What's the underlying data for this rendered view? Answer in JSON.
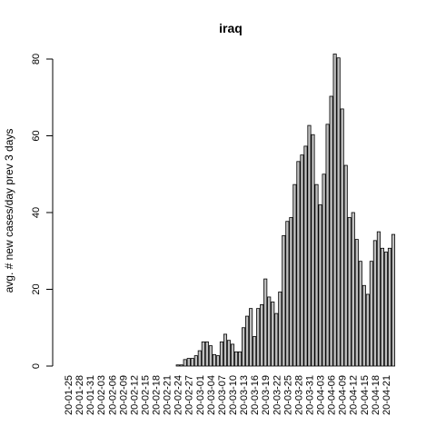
{
  "chart_data": {
    "type": "bar",
    "title": "iraq",
    "xlabel": "",
    "ylabel": "avg. # new cases/day prev  3  days",
    "ylim": [
      0,
      80
    ],
    "yticks": [
      0,
      20,
      40,
      60,
      80
    ],
    "grid": false,
    "legend": "none",
    "colors": {
      "bar_fill": "#bebebe",
      "bar_stroke": "#000000"
    },
    "xtick_labels": [
      "20-01-25",
      "20-01-28",
      "20-01-31",
      "20-02-03",
      "20-02-06",
      "20-02-09",
      "20-02-12",
      "20-02-15",
      "20-02-18",
      "20-02-21",
      "20-02-24",
      "20-02-27",
      "20-03-01",
      "20-03-04",
      "20-03-07",
      "20-03-10",
      "20-03-13",
      "20-03-16",
      "20-03-19",
      "20-03-22",
      "20-03-25",
      "20-03-28",
      "20-03-31",
      "20-04-03",
      "20-04-06",
      "20-04-09",
      "20-04-12",
      "20-04-15",
      "20-04-18",
      "20-04-21"
    ],
    "categories": [
      "20-01-25",
      "20-01-26",
      "20-01-27",
      "20-01-28",
      "20-01-29",
      "20-01-30",
      "20-01-31",
      "20-02-01",
      "20-02-02",
      "20-02-03",
      "20-02-04",
      "20-02-05",
      "20-02-06",
      "20-02-07",
      "20-02-08",
      "20-02-09",
      "20-02-10",
      "20-02-11",
      "20-02-12",
      "20-02-13",
      "20-02-14",
      "20-02-15",
      "20-02-16",
      "20-02-17",
      "20-02-18",
      "20-02-19",
      "20-02-20",
      "20-02-21",
      "20-02-22",
      "20-02-23",
      "20-02-24",
      "20-02-25",
      "20-02-26",
      "20-02-27",
      "20-02-28",
      "20-02-29",
      "20-03-01",
      "20-03-02",
      "20-03-03",
      "20-03-04",
      "20-03-05",
      "20-03-06",
      "20-03-07",
      "20-03-08",
      "20-03-09",
      "20-03-10",
      "20-03-11",
      "20-03-12",
      "20-03-13",
      "20-03-14",
      "20-03-15",
      "20-03-16",
      "20-03-17",
      "20-03-18",
      "20-03-19",
      "20-03-20",
      "20-03-21",
      "20-03-22",
      "20-03-23",
      "20-03-24",
      "20-03-25",
      "20-03-26",
      "20-03-27",
      "20-03-28",
      "20-03-29",
      "20-03-30",
      "20-03-31",
      "20-04-01",
      "20-04-02",
      "20-04-03",
      "20-04-04",
      "20-04-05",
      "20-04-06",
      "20-04-07",
      "20-04-08",
      "20-04-09",
      "20-04-10",
      "20-04-11",
      "20-04-12",
      "20-04-13",
      "20-04-14",
      "20-04-15",
      "20-04-16",
      "20-04-17",
      "20-04-18",
      "20-04-19",
      "20-04-20",
      "20-04-21",
      "20-04-22",
      "20-04-23"
    ],
    "values": [
      0,
      0,
      0,
      0,
      0,
      0,
      0,
      0,
      0,
      0,
      0,
      0,
      0,
      0,
      0,
      0,
      0,
      0,
      0,
      0,
      0,
      0,
      0,
      0,
      0,
      0,
      0,
      0,
      0,
      0,
      0.3,
      0.3,
      1.7,
      2,
      2,
      2.7,
      4,
      6.3,
      6.3,
      5.3,
      3,
      2.7,
      6.3,
      8.3,
      6.7,
      5.7,
      3.7,
      3.7,
      10,
      13,
      15,
      7.7,
      15,
      16,
      22.7,
      18,
      16.7,
      13.7,
      19.3,
      34,
      37.7,
      38.7,
      47.3,
      53.3,
      55,
      57.3,
      62.7,
      60.3,
      47.3,
      42,
      50,
      63,
      70.3,
      81.3,
      80.3,
      67,
      52.3,
      38.7,
      40,
      33,
      27.3,
      21,
      18.7,
      27.3,
      32.7,
      35,
      30.7,
      29.7,
      30.7,
      34.3
    ]
  }
}
